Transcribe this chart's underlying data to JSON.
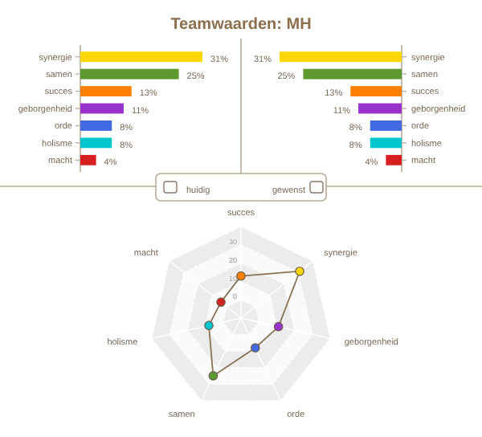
{
  "chart_data": [
    {
      "type": "bar",
      "title": "Teamwaarden: MH",
      "orientation": "horizontal",
      "categories": [
        "synergie",
        "samen",
        "succes",
        "geborgenheid",
        "orde",
        "holisme",
        "macht"
      ],
      "values": [
        31,
        25,
        13,
        11,
        8,
        8,
        4
      ],
      "value_labels": [
        "31%",
        "25%",
        "13%",
        "11%",
        "8%",
        "8%",
        "4%"
      ],
      "colors": [
        "#ffd700",
        "#5e9a30",
        "#ff8000",
        "#9932cc",
        "#4169e1",
        "#00c5cd",
        "#d42020"
      ],
      "annotations": [
        "huidig"
      ]
    },
    {
      "type": "bar",
      "orientation": "horizontal",
      "categories": [
        "synergie",
        "samen",
        "succes",
        "geborgenheid",
        "orde",
        "holisme",
        "macht"
      ],
      "values": [
        31,
        25,
        13,
        11,
        8,
        8,
        4
      ],
      "value_labels": [
        "31%",
        "25%",
        "13%",
        "11%",
        "8%",
        "8%",
        "4%"
      ],
      "colors": [
        "#ffd700",
        "#5e9a30",
        "#ff8000",
        "#9932cc",
        "#4169e1",
        "#00c5cd",
        "#d42020"
      ],
      "annotations": [
        "gewenst"
      ]
    },
    {
      "type": "radar",
      "categories": [
        "succes",
        "synergie",
        "geborgenheid",
        "orde",
        "samen",
        "holisme",
        "macht"
      ],
      "series": [
        {
          "color": "#8b7355",
          "values": [
            13,
            31,
            11,
            8,
            25,
            8,
            4
          ],
          "colors": [
            "#ff8000",
            "#ffd700",
            "#9932cc",
            "#4169e1",
            "#5e9a30",
            "#00c5cd",
            "#d42020"
          ]
        }
      ],
      "ylim": [
        -10,
        40
      ],
      "yticks": [
        0,
        10,
        20,
        30
      ],
      "grid": true,
      "marker": "circle"
    }
  ]
}
